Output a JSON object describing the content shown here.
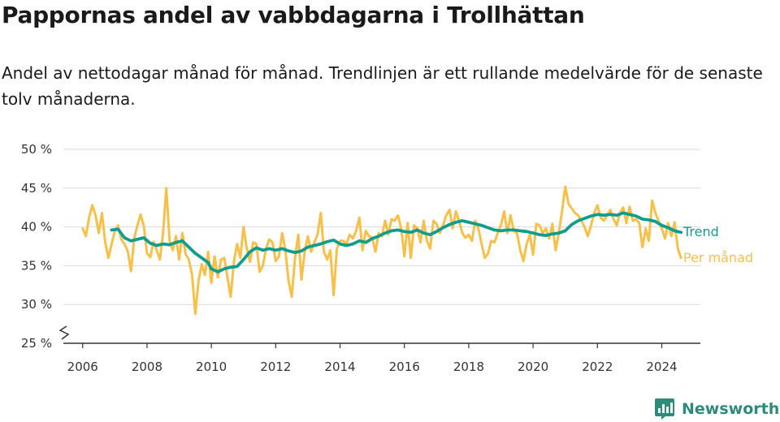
{
  "chart_data": {
    "type": "line",
    "title": "Pappornas andel av vabbdagarna i Trollhättan",
    "subtitle": "Andel av nettodagar månad för månad. Trendlinjen är ett rullande medelvärde för de senaste tolv månaderna.",
    "xlabel": "",
    "ylabel": "",
    "ylim": [
      25,
      50
    ],
    "xlim": [
      2005.4,
      2025.2
    ],
    "y_ticks": [
      "25 %",
      "30 %",
      "35 %",
      "40 %",
      "45 %",
      "50 %"
    ],
    "x_ticks": [
      "2006",
      "2008",
      "2010",
      "2012",
      "2014",
      "2016",
      "2018",
      "2020",
      "2022",
      "2024"
    ],
    "grid": true,
    "axis_break": true,
    "series": [
      {
        "name": "Per månad",
        "color": "#f7c04a",
        "points": [
          [
            2006.0,
            39.8
          ],
          [
            2006.1,
            38.8
          ],
          [
            2006.2,
            41.2
          ],
          [
            2006.3,
            42.8
          ],
          [
            2006.4,
            41.5
          ],
          [
            2006.5,
            39.2
          ],
          [
            2006.6,
            41.8
          ],
          [
            2006.7,
            38.0
          ],
          [
            2006.8,
            36.0
          ],
          [
            2006.9,
            37.8
          ],
          [
            2007.0,
            39.5
          ],
          [
            2007.1,
            40.2
          ],
          [
            2007.2,
            38.4
          ],
          [
            2007.3,
            37.8
          ],
          [
            2007.4,
            36.9
          ],
          [
            2007.5,
            34.3
          ],
          [
            2007.6,
            38.5
          ],
          [
            2007.7,
            40.2
          ],
          [
            2007.8,
            41.6
          ],
          [
            2007.9,
            40.1
          ],
          [
            2008.0,
            36.6
          ],
          [
            2008.1,
            36.1
          ],
          [
            2008.2,
            38.1
          ],
          [
            2008.3,
            37.0
          ],
          [
            2008.4,
            35.8
          ],
          [
            2008.5,
            39.2
          ],
          [
            2008.6,
            45.0
          ],
          [
            2008.7,
            38.2
          ],
          [
            2008.8,
            37.0
          ],
          [
            2008.9,
            38.8
          ],
          [
            2009.0,
            35.8
          ],
          [
            2009.1,
            39.2
          ],
          [
            2009.2,
            36.5
          ],
          [
            2009.3,
            35.8
          ],
          [
            2009.4,
            33.8
          ],
          [
            2009.5,
            28.8
          ],
          [
            2009.6,
            33.0
          ],
          [
            2009.7,
            35.2
          ],
          [
            2009.8,
            33.8
          ],
          [
            2009.9,
            36.8
          ],
          [
            2010.0,
            32.8
          ],
          [
            2010.1,
            36.2
          ],
          [
            2010.2,
            33.5
          ],
          [
            2010.3,
            35.8
          ],
          [
            2010.4,
            36.0
          ],
          [
            2010.5,
            33.5
          ],
          [
            2010.6,
            31.0
          ],
          [
            2010.7,
            35.5
          ],
          [
            2010.8,
            37.8
          ],
          [
            2010.9,
            36.0
          ],
          [
            2011.0,
            40.0
          ],
          [
            2011.1,
            37.2
          ],
          [
            2011.2,
            35.5
          ],
          [
            2011.3,
            38.0
          ],
          [
            2011.4,
            37.8
          ],
          [
            2011.5,
            34.2
          ],
          [
            2011.6,
            35.0
          ],
          [
            2011.7,
            37.2
          ],
          [
            2011.8,
            38.4
          ],
          [
            2011.9,
            38.0
          ],
          [
            2012.0,
            35.6
          ],
          [
            2012.1,
            36.2
          ],
          [
            2012.2,
            39.2
          ],
          [
            2012.3,
            37.0
          ],
          [
            2012.4,
            33.0
          ],
          [
            2012.5,
            31.0
          ],
          [
            2012.6,
            36.0
          ],
          [
            2012.7,
            39.0
          ],
          [
            2012.8,
            33.2
          ],
          [
            2012.9,
            36.8
          ],
          [
            2013.0,
            38.8
          ],
          [
            2013.1,
            36.8
          ],
          [
            2013.2,
            38.0
          ],
          [
            2013.3,
            39.0
          ],
          [
            2013.4,
            41.8
          ],
          [
            2013.5,
            36.8
          ],
          [
            2013.6,
            35.8
          ],
          [
            2013.7,
            37.0
          ],
          [
            2013.8,
            31.2
          ],
          [
            2013.9,
            37.2
          ],
          [
            2014.0,
            38.2
          ],
          [
            2014.1,
            38.2
          ],
          [
            2014.2,
            37.8
          ],
          [
            2014.3,
            39.0
          ],
          [
            2014.4,
            38.5
          ],
          [
            2014.5,
            39.5
          ],
          [
            2014.6,
            41.2
          ],
          [
            2014.7,
            37.0
          ],
          [
            2014.8,
            39.5
          ],
          [
            2014.9,
            38.8
          ],
          [
            2015.0,
            38.6
          ],
          [
            2015.1,
            36.8
          ],
          [
            2015.2,
            39.2
          ],
          [
            2015.3,
            38.8
          ],
          [
            2015.4,
            40.8
          ],
          [
            2015.5,
            39.0
          ],
          [
            2015.6,
            41.0
          ],
          [
            2015.7,
            40.8
          ],
          [
            2015.8,
            41.5
          ],
          [
            2015.9,
            39.8
          ],
          [
            2016.0,
            36.2
          ],
          [
            2016.1,
            40.5
          ],
          [
            2016.2,
            36.0
          ],
          [
            2016.3,
            40.2
          ],
          [
            2016.4,
            39.8
          ],
          [
            2016.5,
            38.0
          ],
          [
            2016.6,
            40.8
          ],
          [
            2016.7,
            38.2
          ],
          [
            2016.8,
            37.2
          ],
          [
            2016.9,
            40.8
          ],
          [
            2017.0,
            40.4
          ],
          [
            2017.1,
            39.2
          ],
          [
            2017.2,
            40.2
          ],
          [
            2017.3,
            41.5
          ],
          [
            2017.4,
            42.2
          ],
          [
            2017.5,
            39.8
          ],
          [
            2017.6,
            42.0
          ],
          [
            2017.7,
            40.8
          ],
          [
            2017.8,
            39.2
          ],
          [
            2017.9,
            38.6
          ],
          [
            2018.0,
            39.0
          ],
          [
            2018.1,
            38.2
          ],
          [
            2018.2,
            40.8
          ],
          [
            2018.3,
            39.8
          ],
          [
            2018.4,
            37.8
          ],
          [
            2018.5,
            36.0
          ],
          [
            2018.6,
            36.6
          ],
          [
            2018.7,
            38.2
          ],
          [
            2018.8,
            38.0
          ],
          [
            2018.9,
            39.2
          ],
          [
            2019.0,
            40.2
          ],
          [
            2019.1,
            42.0
          ],
          [
            2019.2,
            39.2
          ],
          [
            2019.3,
            41.5
          ],
          [
            2019.4,
            39.5
          ],
          [
            2019.5,
            39.2
          ],
          [
            2019.6,
            37.0
          ],
          [
            2019.7,
            35.6
          ],
          [
            2019.8,
            37.8
          ],
          [
            2019.9,
            39.0
          ],
          [
            2020.0,
            36.4
          ],
          [
            2020.1,
            40.4
          ],
          [
            2020.2,
            40.2
          ],
          [
            2020.3,
            39.2
          ],
          [
            2020.4,
            39.8
          ],
          [
            2020.5,
            38.5
          ],
          [
            2020.6,
            40.4
          ],
          [
            2020.7,
            37.0
          ],
          [
            2020.8,
            39.2
          ],
          [
            2020.9,
            42.0
          ],
          [
            2021.0,
            45.2
          ],
          [
            2021.1,
            43.0
          ],
          [
            2021.2,
            42.4
          ],
          [
            2021.3,
            41.8
          ],
          [
            2021.4,
            41.5
          ],
          [
            2021.5,
            40.8
          ],
          [
            2021.6,
            40.0
          ],
          [
            2021.7,
            38.8
          ],
          [
            2021.8,
            40.2
          ],
          [
            2021.9,
            41.8
          ],
          [
            2022.0,
            42.8
          ],
          [
            2022.1,
            41.2
          ],
          [
            2022.2,
            40.8
          ],
          [
            2022.3,
            41.5
          ],
          [
            2022.4,
            42.2
          ],
          [
            2022.5,
            41.0
          ],
          [
            2022.6,
            40.2
          ],
          [
            2022.7,
            41.8
          ],
          [
            2022.8,
            42.5
          ],
          [
            2022.9,
            40.5
          ],
          [
            2023.0,
            42.6
          ],
          [
            2023.1,
            40.8
          ],
          [
            2023.2,
            41.0
          ],
          [
            2023.3,
            40.5
          ],
          [
            2023.4,
            37.4
          ],
          [
            2023.5,
            39.8
          ],
          [
            2023.6,
            38.2
          ],
          [
            2023.7,
            43.4
          ],
          [
            2023.8,
            41.8
          ],
          [
            2023.9,
            40.8
          ],
          [
            2024.0,
            39.8
          ],
          [
            2024.1,
            38.5
          ],
          [
            2024.2,
            40.5
          ],
          [
            2024.3,
            38.8
          ],
          [
            2024.4,
            40.6
          ],
          [
            2024.5,
            37.2
          ],
          [
            2024.6,
            36.0
          ]
        ]
      },
      {
        "name": "Trend",
        "color": "#129c8c",
        "points": [
          [
            2006.9,
            39.6
          ],
          [
            2007.1,
            39.7
          ],
          [
            2007.3,
            38.6
          ],
          [
            2007.5,
            38.2
          ],
          [
            2007.7,
            38.4
          ],
          [
            2007.9,
            38.6
          ],
          [
            2008.1,
            37.9
          ],
          [
            2008.3,
            37.6
          ],
          [
            2008.5,
            37.8
          ],
          [
            2008.7,
            37.7
          ],
          [
            2008.9,
            38.0
          ],
          [
            2009.1,
            38.2
          ],
          [
            2009.3,
            37.4
          ],
          [
            2009.5,
            36.6
          ],
          [
            2009.7,
            36.0
          ],
          [
            2009.9,
            35.4
          ],
          [
            2010.0,
            34.6
          ],
          [
            2010.2,
            34.2
          ],
          [
            2010.4,
            34.6
          ],
          [
            2010.6,
            34.8
          ],
          [
            2010.8,
            34.9
          ],
          [
            2011.0,
            35.8
          ],
          [
            2011.2,
            36.8
          ],
          [
            2011.4,
            37.3
          ],
          [
            2011.6,
            37.0
          ],
          [
            2011.8,
            37.2
          ],
          [
            2012.0,
            37.0
          ],
          [
            2012.2,
            37.2
          ],
          [
            2012.4,
            36.9
          ],
          [
            2012.6,
            36.7
          ],
          [
            2012.8,
            36.9
          ],
          [
            2013.0,
            37.4
          ],
          [
            2013.2,
            37.6
          ],
          [
            2013.4,
            37.8
          ],
          [
            2013.6,
            38.1
          ],
          [
            2013.8,
            38.3
          ],
          [
            2014.0,
            37.8
          ],
          [
            2014.2,
            37.6
          ],
          [
            2014.4,
            37.8
          ],
          [
            2014.6,
            38.2
          ],
          [
            2014.8,
            38.0
          ],
          [
            2015.0,
            38.5
          ],
          [
            2015.2,
            38.8
          ],
          [
            2015.4,
            39.2
          ],
          [
            2015.6,
            39.5
          ],
          [
            2015.8,
            39.6
          ],
          [
            2016.0,
            39.4
          ],
          [
            2016.2,
            39.3
          ],
          [
            2016.4,
            39.6
          ],
          [
            2016.6,
            39.2
          ],
          [
            2016.8,
            39.0
          ],
          [
            2017.0,
            39.4
          ],
          [
            2017.2,
            39.9
          ],
          [
            2017.4,
            40.3
          ],
          [
            2017.6,
            40.6
          ],
          [
            2017.8,
            40.8
          ],
          [
            2018.0,
            40.6
          ],
          [
            2018.2,
            40.4
          ],
          [
            2018.4,
            40.2
          ],
          [
            2018.6,
            39.9
          ],
          [
            2018.8,
            39.6
          ],
          [
            2019.0,
            39.5
          ],
          [
            2019.2,
            39.6
          ],
          [
            2019.4,
            39.6
          ],
          [
            2019.6,
            39.5
          ],
          [
            2019.8,
            39.4
          ],
          [
            2020.0,
            39.2
          ],
          [
            2020.2,
            39.0
          ],
          [
            2020.4,
            38.9
          ],
          [
            2020.6,
            39.1
          ],
          [
            2020.8,
            39.2
          ],
          [
            2021.0,
            39.5
          ],
          [
            2021.2,
            40.3
          ],
          [
            2021.4,
            40.8
          ],
          [
            2021.6,
            41.1
          ],
          [
            2021.8,
            41.4
          ],
          [
            2022.0,
            41.6
          ],
          [
            2022.2,
            41.5
          ],
          [
            2022.4,
            41.6
          ],
          [
            2022.6,
            41.5
          ],
          [
            2022.8,
            41.8
          ],
          [
            2023.0,
            41.6
          ],
          [
            2023.2,
            41.4
          ],
          [
            2023.4,
            41.0
          ],
          [
            2023.6,
            40.9
          ],
          [
            2023.8,
            40.7
          ],
          [
            2024.0,
            40.2
          ],
          [
            2024.2,
            39.9
          ],
          [
            2024.4,
            39.5
          ],
          [
            2024.6,
            39.3
          ]
        ]
      }
    ]
  },
  "brand": {
    "name": "Newsworthy",
    "icon": "bar-chart-logo-icon",
    "color": "#2e8b7a"
  }
}
